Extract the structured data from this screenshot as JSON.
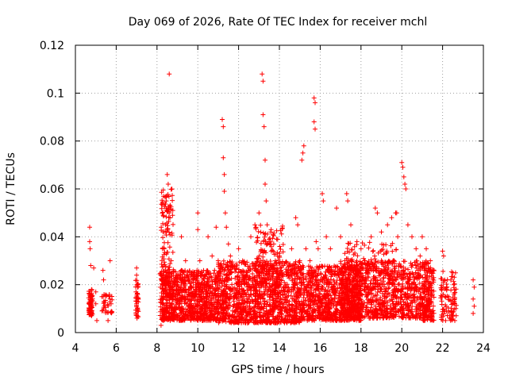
{
  "chart_data": {
    "type": "scatter",
    "title": "Day 069 of 2026, Rate Of TEC Index for receiver mchl",
    "xlabel": "GPS time / hours",
    "ylabel": "ROTI / TECUs",
    "xlim": [
      4,
      24
    ],
    "ylim": [
      0,
      0.12
    ],
    "x_ticks": [
      4,
      6,
      8,
      10,
      12,
      14,
      16,
      18,
      20,
      22,
      24
    ],
    "y_ticks": [
      0,
      0.02,
      0.04,
      0.06,
      0.08,
      0.1,
      0.12
    ],
    "x_tick_labels": [
      "4",
      "6",
      "8",
      "10",
      "12",
      "14",
      "16",
      "18",
      "20",
      "22",
      "24"
    ],
    "y_tick_labels": [
      "0",
      "0.02",
      "0.04",
      "0.06",
      "0.08",
      "0.1",
      "0.12"
    ],
    "grid": true,
    "marker": "+",
    "colors": {
      "series": "#ff0000",
      "grid": "#a0a0a0",
      "axes": "#000000"
    },
    "series": [
      {
        "points": [
          [
            4.7,
            0.044
          ],
          [
            4.7,
            0.038
          ],
          [
            4.72,
            0.035
          ],
          [
            4.75,
            0.028
          ],
          [
            4.7,
            0.016
          ],
          [
            4.72,
            0.012
          ],
          [
            4.68,
            0.01
          ],
          [
            4.75,
            0.008
          ],
          [
            4.8,
            0.014
          ],
          [
            4.9,
            0.027
          ],
          [
            5.0,
            0.017
          ],
          [
            5.0,
            0.012
          ],
          [
            5.05,
            0.005
          ],
          [
            5.35,
            0.026
          ],
          [
            5.38,
            0.022
          ],
          [
            5.3,
            0.015
          ],
          [
            5.4,
            0.013
          ],
          [
            5.5,
            0.009
          ],
          [
            5.6,
            0.005
          ],
          [
            5.7,
            0.03
          ],
          [
            5.7,
            0.014
          ],
          [
            5.75,
            0.012
          ],
          [
            7.0,
            0.027
          ],
          [
            7.0,
            0.024
          ],
          [
            7.02,
            0.02
          ],
          [
            7.05,
            0.016
          ],
          [
            7.0,
            0.012
          ],
          [
            7.05,
            0.009
          ],
          [
            7.02,
            0.006
          ],
          [
            8.2,
            0.003
          ],
          [
            8.25,
            0.006
          ],
          [
            8.3,
            0.02
          ],
          [
            8.35,
            0.035
          ],
          [
            8.4,
            0.042
          ],
          [
            8.45,
            0.055
          ],
          [
            8.5,
            0.066
          ],
          [
            8.55,
            0.062
          ],
          [
            8.6,
            0.108
          ],
          [
            8.6,
            0.05
          ],
          [
            8.7,
            0.03
          ],
          [
            8.8,
            0.024
          ],
          [
            9.0,
            0.02
          ],
          [
            9.2,
            0.04
          ],
          [
            9.4,
            0.03
          ],
          [
            9.6,
            0.025
          ],
          [
            9.8,
            0.022
          ],
          [
            10.0,
            0.05
          ],
          [
            10.0,
            0.043
          ],
          [
            10.1,
            0.03
          ],
          [
            10.2,
            0.025
          ],
          [
            10.3,
            0.02
          ],
          [
            10.5,
            0.04
          ],
          [
            10.7,
            0.032
          ],
          [
            10.9,
            0.044
          ],
          [
            11.0,
            0.03
          ],
          [
            11.2,
            0.089
          ],
          [
            11.25,
            0.086
          ],
          [
            11.25,
            0.073
          ],
          [
            11.3,
            0.066
          ],
          [
            11.3,
            0.059
          ],
          [
            11.35,
            0.05
          ],
          [
            11.4,
            0.044
          ],
          [
            11.5,
            0.037
          ],
          [
            11.6,
            0.032
          ],
          [
            11.7,
            0.028
          ],
          [
            12.0,
            0.035
          ],
          [
            12.2,
            0.03
          ],
          [
            12.4,
            0.025
          ],
          [
            12.6,
            0.04
          ],
          [
            12.8,
            0.045
          ],
          [
            13.0,
            0.05
          ],
          [
            13.15,
            0.108
          ],
          [
            13.2,
            0.105
          ],
          [
            13.2,
            0.091
          ],
          [
            13.25,
            0.086
          ],
          [
            13.3,
            0.072
          ],
          [
            13.3,
            0.062
          ],
          [
            13.35,
            0.055
          ],
          [
            13.4,
            0.045
          ],
          [
            13.5,
            0.038
          ],
          [
            13.6,
            0.034
          ],
          [
            13.8,
            0.03
          ],
          [
            14.0,
            0.032
          ],
          [
            14.2,
            0.028
          ],
          [
            14.4,
            0.026
          ],
          [
            14.6,
            0.035
          ],
          [
            14.8,
            0.048
          ],
          [
            14.9,
            0.045
          ],
          [
            15.0,
            0.03
          ],
          [
            15.1,
            0.072
          ],
          [
            15.15,
            0.075
          ],
          [
            15.2,
            0.078
          ],
          [
            15.3,
            0.035
          ],
          [
            15.5,
            0.03
          ],
          [
            15.7,
            0.098
          ],
          [
            15.75,
            0.096
          ],
          [
            15.7,
            0.088
          ],
          [
            15.75,
            0.085
          ],
          [
            15.8,
            0.038
          ],
          [
            15.9,
            0.035
          ],
          [
            16.1,
            0.058
          ],
          [
            16.15,
            0.055
          ],
          [
            16.3,
            0.04
          ],
          [
            16.5,
            0.035
          ],
          [
            16.8,
            0.052
          ],
          [
            17.0,
            0.04
          ],
          [
            17.3,
            0.058
          ],
          [
            17.35,
            0.055
          ],
          [
            17.5,
            0.045
          ],
          [
            17.8,
            0.038
          ],
          [
            18.0,
            0.035
          ],
          [
            18.2,
            0.03
          ],
          [
            18.5,
            0.04
          ],
          [
            18.7,
            0.052
          ],
          [
            18.8,
            0.05
          ],
          [
            19.0,
            0.042
          ],
          [
            19.3,
            0.045
          ],
          [
            19.5,
            0.048
          ],
          [
            19.7,
            0.05
          ],
          [
            19.75,
            0.05
          ],
          [
            19.8,
            0.04
          ],
          [
            20.0,
            0.071
          ],
          [
            20.05,
            0.069
          ],
          [
            20.1,
            0.065
          ],
          [
            20.15,
            0.062
          ],
          [
            20.2,
            0.06
          ],
          [
            20.3,
            0.045
          ],
          [
            20.5,
            0.04
          ],
          [
            20.7,
            0.035
          ],
          [
            20.9,
            0.032
          ],
          [
            21.0,
            0.04
          ],
          [
            21.2,
            0.035
          ],
          [
            21.4,
            0.03
          ],
          [
            22.0,
            0.034
          ],
          [
            22.05,
            0.032
          ],
          [
            22.1,
            0.022
          ],
          [
            22.2,
            0.018
          ],
          [
            22.3,
            0.015
          ],
          [
            22.5,
            0.025
          ],
          [
            22.55,
            0.02
          ],
          [
            22.6,
            0.014
          ],
          [
            22.65,
            0.01
          ],
          [
            22.6,
            0.005
          ],
          [
            23.5,
            0.022
          ],
          [
            23.55,
            0.019
          ],
          [
            23.5,
            0.014
          ],
          [
            23.55,
            0.011
          ],
          [
            23.5,
            0.008
          ]
        ],
        "dense_bands": [
          {
            "x_range": [
              4.65,
              4.85
            ],
            "y_range": [
              0.007,
              0.018
            ],
            "count": 70
          },
          {
            "x_range": [
              5.3,
              5.8
            ],
            "y_range": [
              0.008,
              0.016
            ],
            "count": 30
          },
          {
            "x_range": [
              6.95,
              7.1
            ],
            "y_range": [
              0.006,
              0.022
            ],
            "count": 40
          },
          {
            "x_range": [
              8.15,
              11.0
            ],
            "y_range": [
              0.005,
              0.026
            ],
            "count": 900
          },
          {
            "x_range": [
              8.2,
              8.8
            ],
            "y_range": [
              0.015,
              0.06
            ],
            "count": 140
          },
          {
            "x_range": [
              11.0,
              15.0
            ],
            "y_range": [
              0.004,
              0.03
            ],
            "count": 1200
          },
          {
            "x_range": [
              12.8,
              14.2
            ],
            "y_range": [
              0.015,
              0.045
            ],
            "count": 180
          },
          {
            "x_range": [
              15.0,
              18.0
            ],
            "y_range": [
              0.005,
              0.028
            ],
            "count": 900
          },
          {
            "x_range": [
              17.0,
              21.5
            ],
            "y_range": [
              0.006,
              0.03
            ],
            "count": 1000
          },
          {
            "x_range": [
              17.2,
              19.8
            ],
            "y_range": [
              0.018,
              0.038
            ],
            "count": 160
          },
          {
            "x_range": [
              21.0,
              21.6
            ],
            "y_range": [
              0.005,
              0.03
            ],
            "count": 100
          },
          {
            "x_range": [
              21.9,
              22.7
            ],
            "y_range": [
              0.005,
              0.026
            ],
            "count": 90
          }
        ]
      }
    ]
  }
}
